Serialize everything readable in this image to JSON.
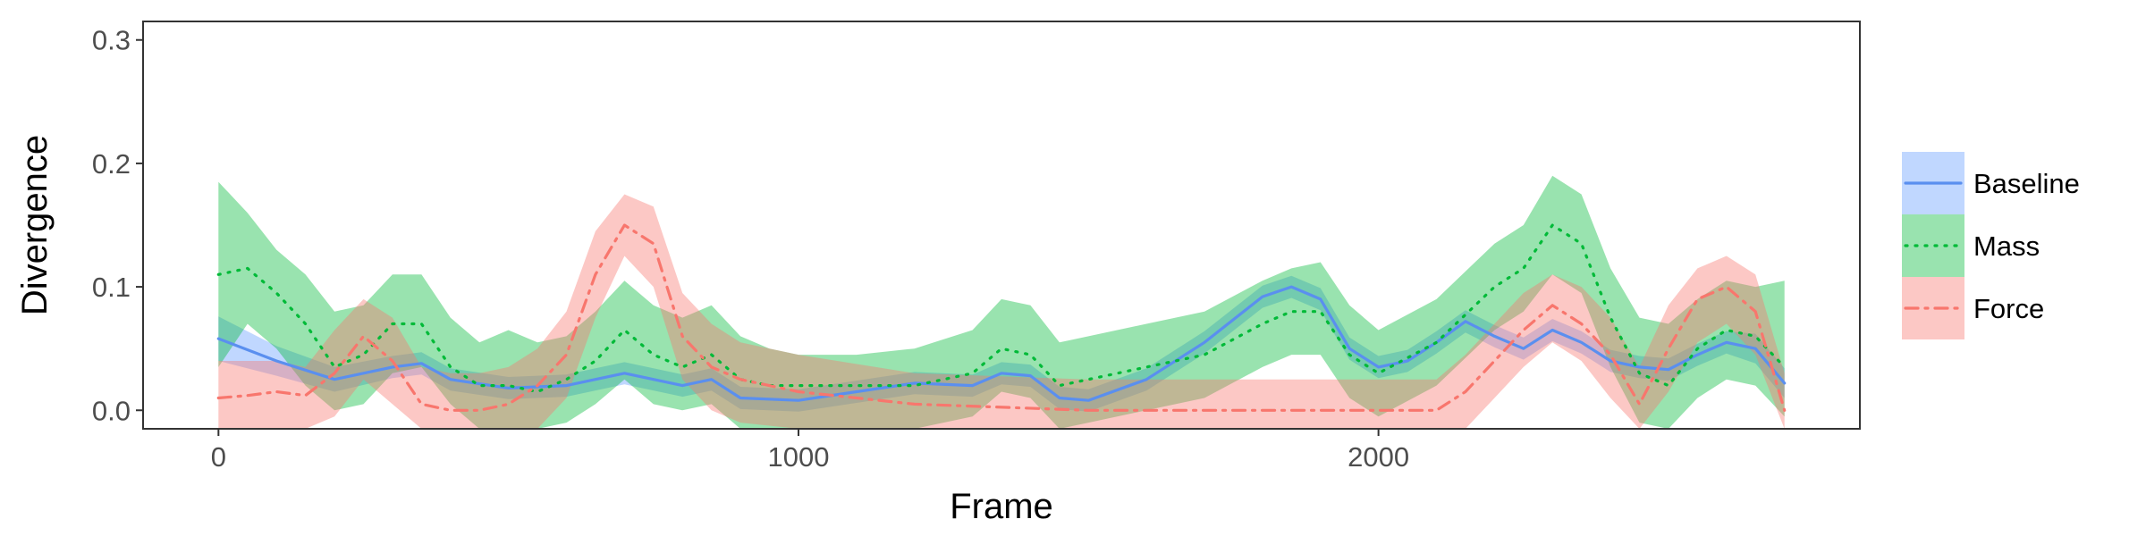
{
  "chart_data": {
    "type": "line",
    "title": "",
    "xlabel": "Frame",
    "ylabel": "Divergence",
    "xlim": [
      -130,
      2830
    ],
    "ylim": [
      -0.015,
      0.315
    ],
    "x_ticks": [
      0,
      1000,
      2000
    ],
    "x_tick_labels": [
      "0",
      "1000",
      "2000"
    ],
    "y_ticks": [
      0,
      0.1,
      0.2,
      0.3
    ],
    "y_tick_labels": [
      "0.0",
      "0.1",
      "0.2",
      "0.3"
    ],
    "grid": false,
    "legend_position": "right",
    "series": [
      {
        "name": "Baseline",
        "color": "#619CFF",
        "line_color": "#5a8fef",
        "dash": "solid",
        "x": [
          0,
          100,
          200,
          300,
          350,
          400,
          500,
          600,
          700,
          800,
          850,
          900,
          1000,
          1100,
          1200,
          1300,
          1350,
          1400,
          1450,
          1500,
          1600,
          1700,
          1800,
          1850,
          1900,
          1950,
          2000,
          2050,
          2100,
          2150,
          2200,
          2250,
          2300,
          2350,
          2400,
          2450,
          2500,
          2550,
          2600,
          2650,
          2700
        ],
        "y": [
          0.058,
          0.04,
          0.025,
          0.035,
          0.038,
          0.025,
          0.018,
          0.02,
          0.03,
          0.02,
          0.025,
          0.01,
          0.008,
          0.015,
          0.022,
          0.02,
          0.03,
          0.028,
          0.01,
          0.008,
          0.025,
          0.055,
          0.092,
          0.1,
          0.09,
          0.05,
          0.035,
          0.04,
          0.055,
          0.072,
          0.06,
          0.05,
          0.065,
          0.055,
          0.04,
          0.035,
          0.033,
          0.045,
          0.055,
          0.05,
          0.022
        ],
        "lower": [
          0.04,
          0.028,
          0.015,
          0.026,
          0.029,
          0.016,
          0.009,
          0.011,
          0.021,
          0.011,
          0.016,
          0.001,
          -0.001,
          0.006,
          0.013,
          0.011,
          0.021,
          0.019,
          0.001,
          -0.001,
          0.016,
          0.046,
          0.083,
          0.091,
          0.081,
          0.041,
          0.026,
          0.031,
          0.046,
          0.063,
          0.051,
          0.041,
          0.056,
          0.046,
          0.031,
          0.026,
          0.024,
          0.036,
          0.046,
          0.038,
          0.01
        ],
        "upper": [
          0.076,
          0.052,
          0.035,
          0.044,
          0.047,
          0.034,
          0.027,
          0.029,
          0.039,
          0.029,
          0.034,
          0.019,
          0.017,
          0.024,
          0.031,
          0.029,
          0.039,
          0.037,
          0.019,
          0.017,
          0.034,
          0.064,
          0.101,
          0.109,
          0.099,
          0.059,
          0.044,
          0.049,
          0.064,
          0.081,
          0.069,
          0.059,
          0.074,
          0.064,
          0.049,
          0.044,
          0.042,
          0.054,
          0.064,
          0.062,
          0.034
        ]
      },
      {
        "name": "Mass",
        "color": "#00BA38",
        "line_color": "#00BA38",
        "dash": "dotted",
        "x": [
          0,
          50,
          100,
          150,
          200,
          250,
          300,
          350,
          400,
          450,
          500,
          550,
          600,
          650,
          700,
          750,
          800,
          850,
          900,
          950,
          1000,
          1100,
          1200,
          1300,
          1350,
          1400,
          1450,
          1500,
          1600,
          1700,
          1800,
          1850,
          1900,
          1950,
          2000,
          2100,
          2200,
          2250,
          2300,
          2350,
          2400,
          2450,
          2500,
          2550,
          2600,
          2650,
          2700
        ],
        "y": [
          0.11,
          0.115,
          0.095,
          0.07,
          0.035,
          0.045,
          0.07,
          0.07,
          0.035,
          0.02,
          0.02,
          0.015,
          0.025,
          0.04,
          0.065,
          0.045,
          0.035,
          0.045,
          0.025,
          0.02,
          0.02,
          0.02,
          0.02,
          0.03,
          0.05,
          0.045,
          0.02,
          0.025,
          0.035,
          0.045,
          0.07,
          0.08,
          0.08,
          0.045,
          0.03,
          0.055,
          0.1,
          0.115,
          0.15,
          0.135,
          0.075,
          0.03,
          0.02,
          0.05,
          0.065,
          0.06,
          0.035
        ],
        "lower": [
          0.035,
          0.07,
          0.05,
          0.02,
          0.0,
          0.005,
          0.03,
          0.035,
          0.005,
          -0.015,
          -0.015,
          -0.015,
          -0.01,
          0.005,
          0.025,
          0.005,
          0.0,
          0.005,
          -0.015,
          -0.015,
          -0.015,
          -0.015,
          -0.015,
          -0.005,
          0.015,
          0.01,
          -0.015,
          -0.01,
          0.0,
          0.01,
          0.035,
          0.045,
          0.045,
          0.01,
          -0.005,
          0.02,
          0.065,
          0.08,
          0.11,
          0.095,
          0.035,
          -0.01,
          -0.015,
          0.01,
          0.025,
          0.02,
          -0.005
        ],
        "upper": [
          0.185,
          0.16,
          0.13,
          0.11,
          0.08,
          0.085,
          0.11,
          0.11,
          0.075,
          0.055,
          0.065,
          0.055,
          0.06,
          0.08,
          0.105,
          0.085,
          0.075,
          0.085,
          0.06,
          0.05,
          0.045,
          0.045,
          0.05,
          0.065,
          0.09,
          0.085,
          0.055,
          0.06,
          0.07,
          0.08,
          0.105,
          0.115,
          0.12,
          0.085,
          0.065,
          0.09,
          0.135,
          0.15,
          0.19,
          0.175,
          0.115,
          0.075,
          0.07,
          0.09,
          0.105,
          0.1,
          0.105
        ]
      },
      {
        "name": "Force",
        "color": "#F8766D",
        "line_color": "#F8766D",
        "dash": "dashdot",
        "x": [
          0,
          50,
          100,
          150,
          200,
          250,
          300,
          350,
          400,
          450,
          500,
          550,
          600,
          650,
          700,
          750,
          800,
          850,
          900,
          1000,
          1200,
          1500,
          1700,
          2100,
          2150,
          2200,
          2250,
          2300,
          2350,
          2400,
          2450,
          2500,
          2550,
          2600,
          2650,
          2700
        ],
        "y": [
          0.01,
          0.012,
          0.015,
          0.012,
          0.03,
          0.06,
          0.04,
          0.005,
          0.0,
          0.0,
          0.005,
          0.02,
          0.045,
          0.11,
          0.15,
          0.135,
          0.06,
          0.035,
          0.025,
          0.015,
          0.005,
          0.0,
          0.0,
          0.0,
          0.015,
          0.04,
          0.065,
          0.085,
          0.07,
          0.045,
          0.005,
          0.05,
          0.09,
          0.1,
          0.08,
          0.0
        ],
        "lower": [
          -0.015,
          -0.015,
          -0.015,
          -0.015,
          -0.005,
          0.025,
          0.005,
          -0.015,
          -0.015,
          -0.015,
          -0.015,
          -0.015,
          0.01,
          0.075,
          0.125,
          0.1,
          0.025,
          0.0,
          -0.01,
          -0.015,
          -0.015,
          -0.015,
          -0.015,
          -0.015,
          -0.015,
          0.01,
          0.035,
          0.055,
          0.04,
          0.01,
          -0.015,
          0.015,
          0.055,
          0.07,
          0.045,
          -0.015
        ],
        "upper": [
          0.04,
          0.04,
          0.04,
          0.035,
          0.065,
          0.09,
          0.075,
          0.035,
          0.03,
          0.03,
          0.035,
          0.05,
          0.08,
          0.145,
          0.175,
          0.165,
          0.095,
          0.07,
          0.055,
          0.045,
          0.03,
          0.025,
          0.025,
          0.025,
          0.045,
          0.07,
          0.095,
          0.11,
          0.1,
          0.075,
          0.035,
          0.085,
          0.115,
          0.125,
          0.11,
          0.03
        ]
      }
    ]
  }
}
